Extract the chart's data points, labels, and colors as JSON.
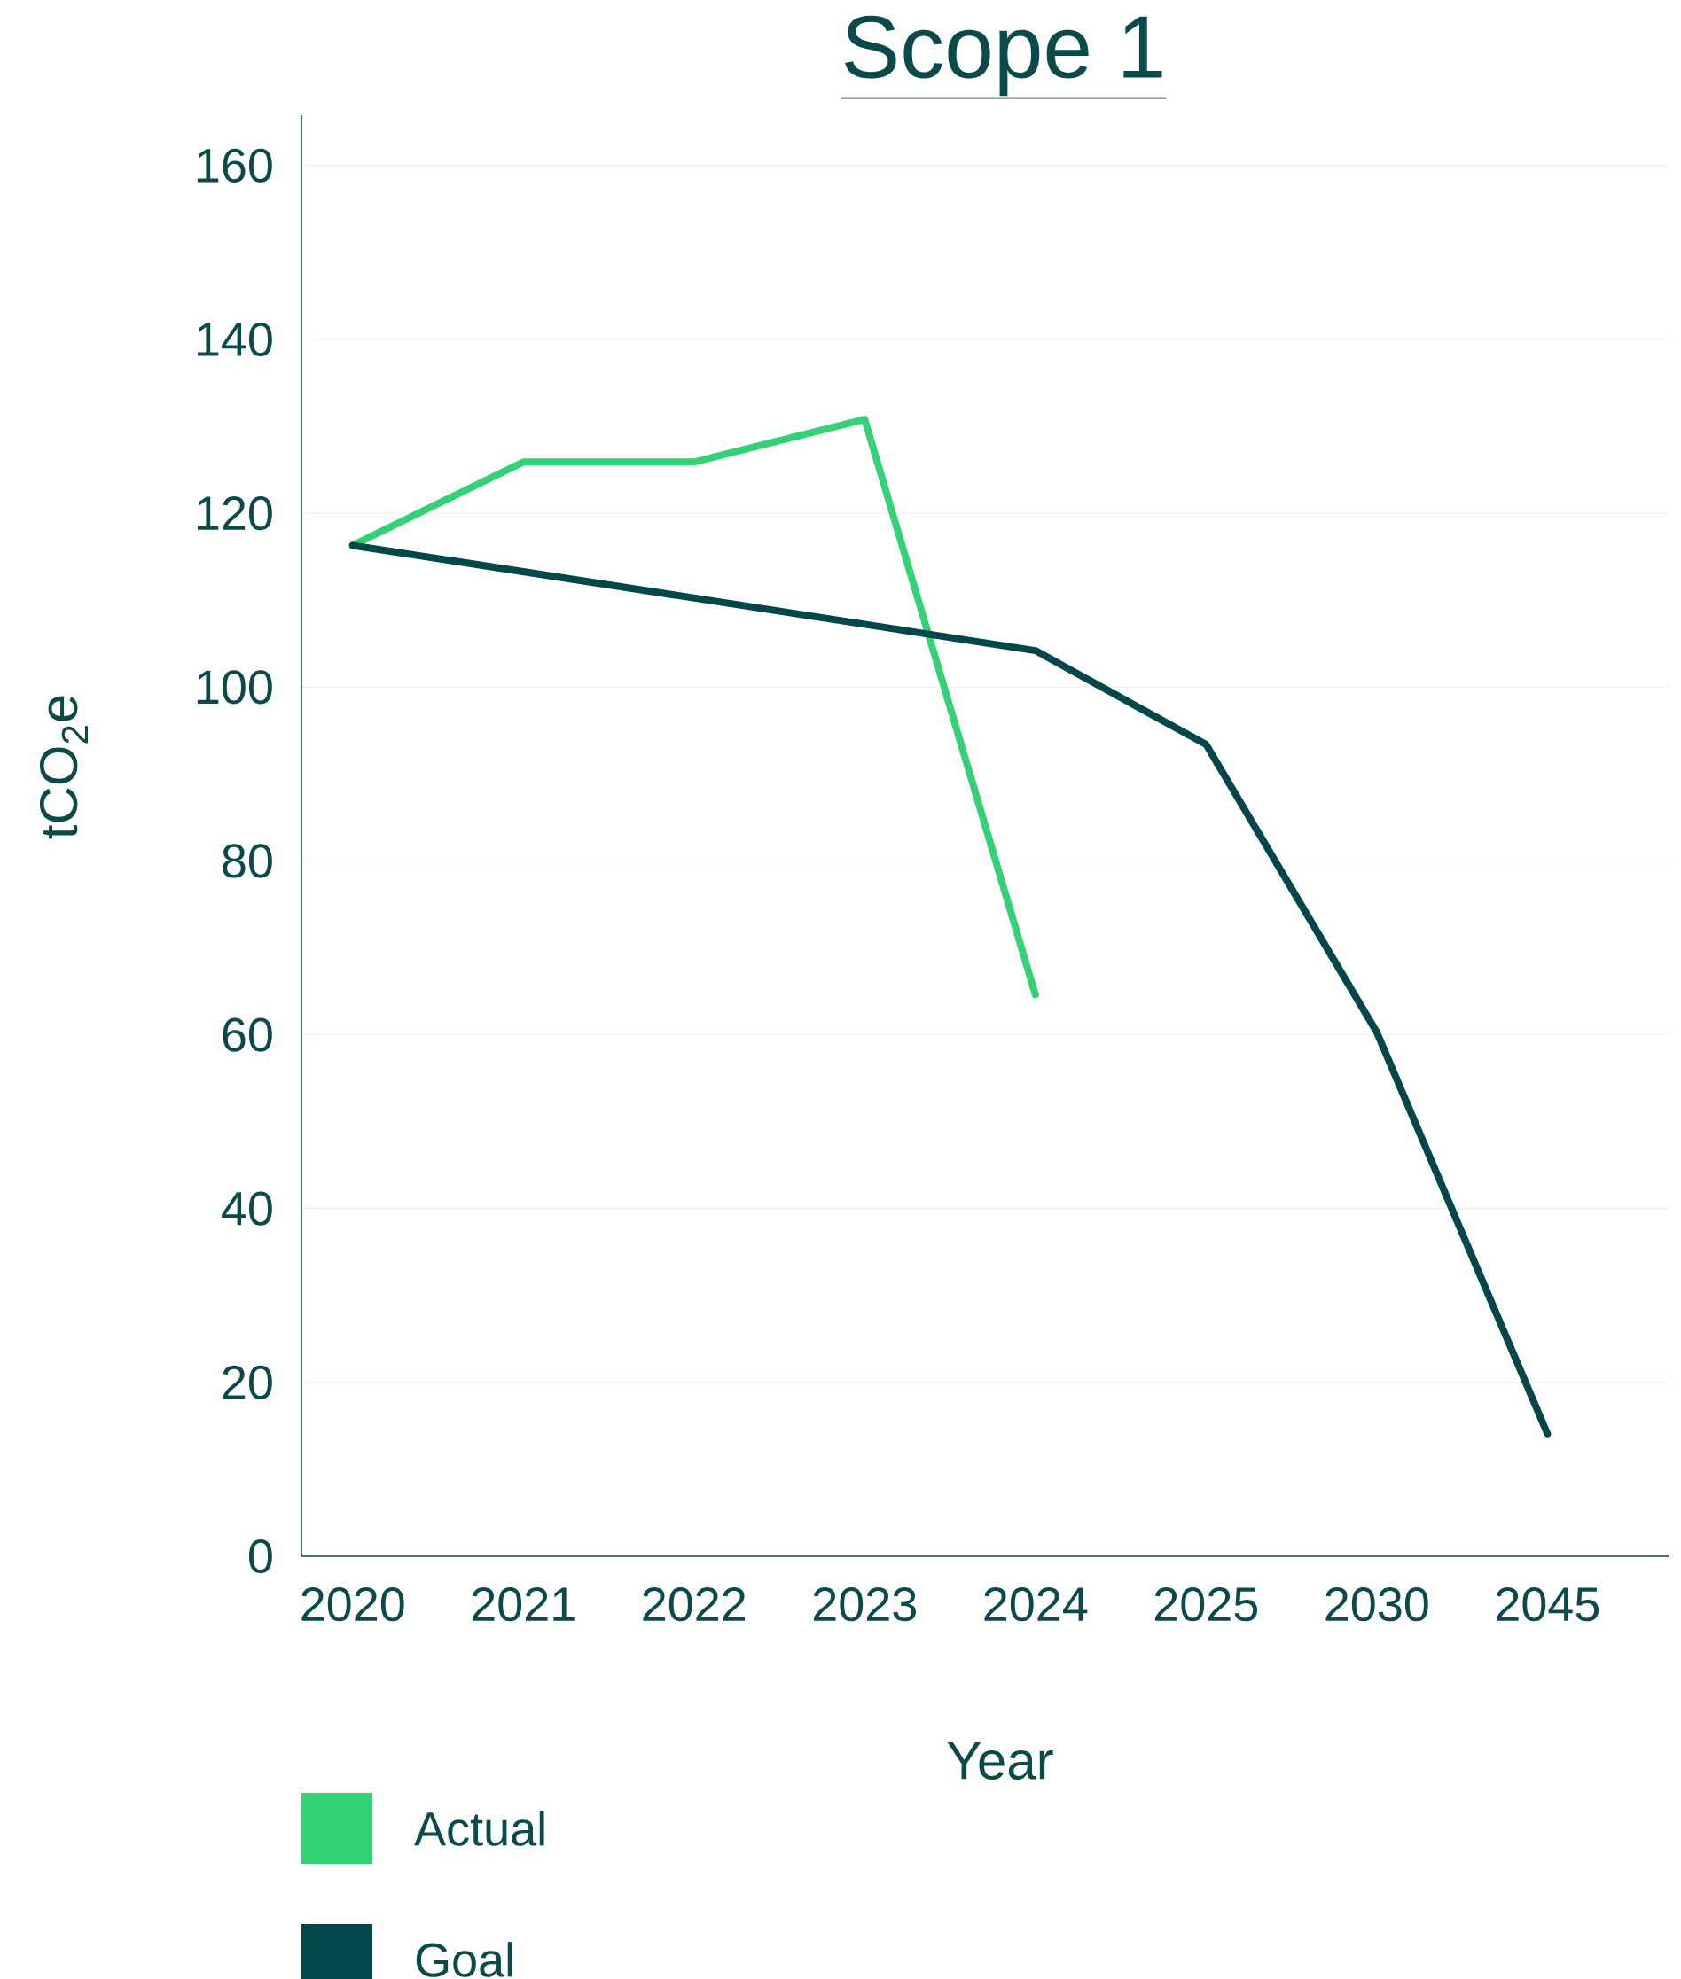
{
  "chart_data": {
    "type": "line",
    "title": "Scope 1",
    "xlabel": "Year",
    "ylabel": "tCO$_{2}$e",
    "categories": [
      "2020",
      "2021",
      "2022",
      "2023",
      "2024",
      "2025",
      "2030",
      "2045"
    ],
    "ylim": [
      0,
      165.8
    ],
    "yticks": [
      0,
      20,
      40,
      60,
      80,
      100,
      120,
      140,
      160
    ],
    "grid": "y",
    "legend": "bottom left",
    "marker": "none",
    "line_style": "solid",
    "series": [
      {
        "name": "Actual",
        "color": "#34d175",
        "values": [
          116.3,
          125.9,
          125.9,
          130.8,
          64.6,
          null,
          null,
          null
        ]
      },
      {
        "name": "Goal",
        "color": "#03474a",
        "values": [
          116.3,
          null,
          null,
          null,
          104.2,
          93.4,
          60.3,
          14.1
        ]
      }
    ]
  }
}
